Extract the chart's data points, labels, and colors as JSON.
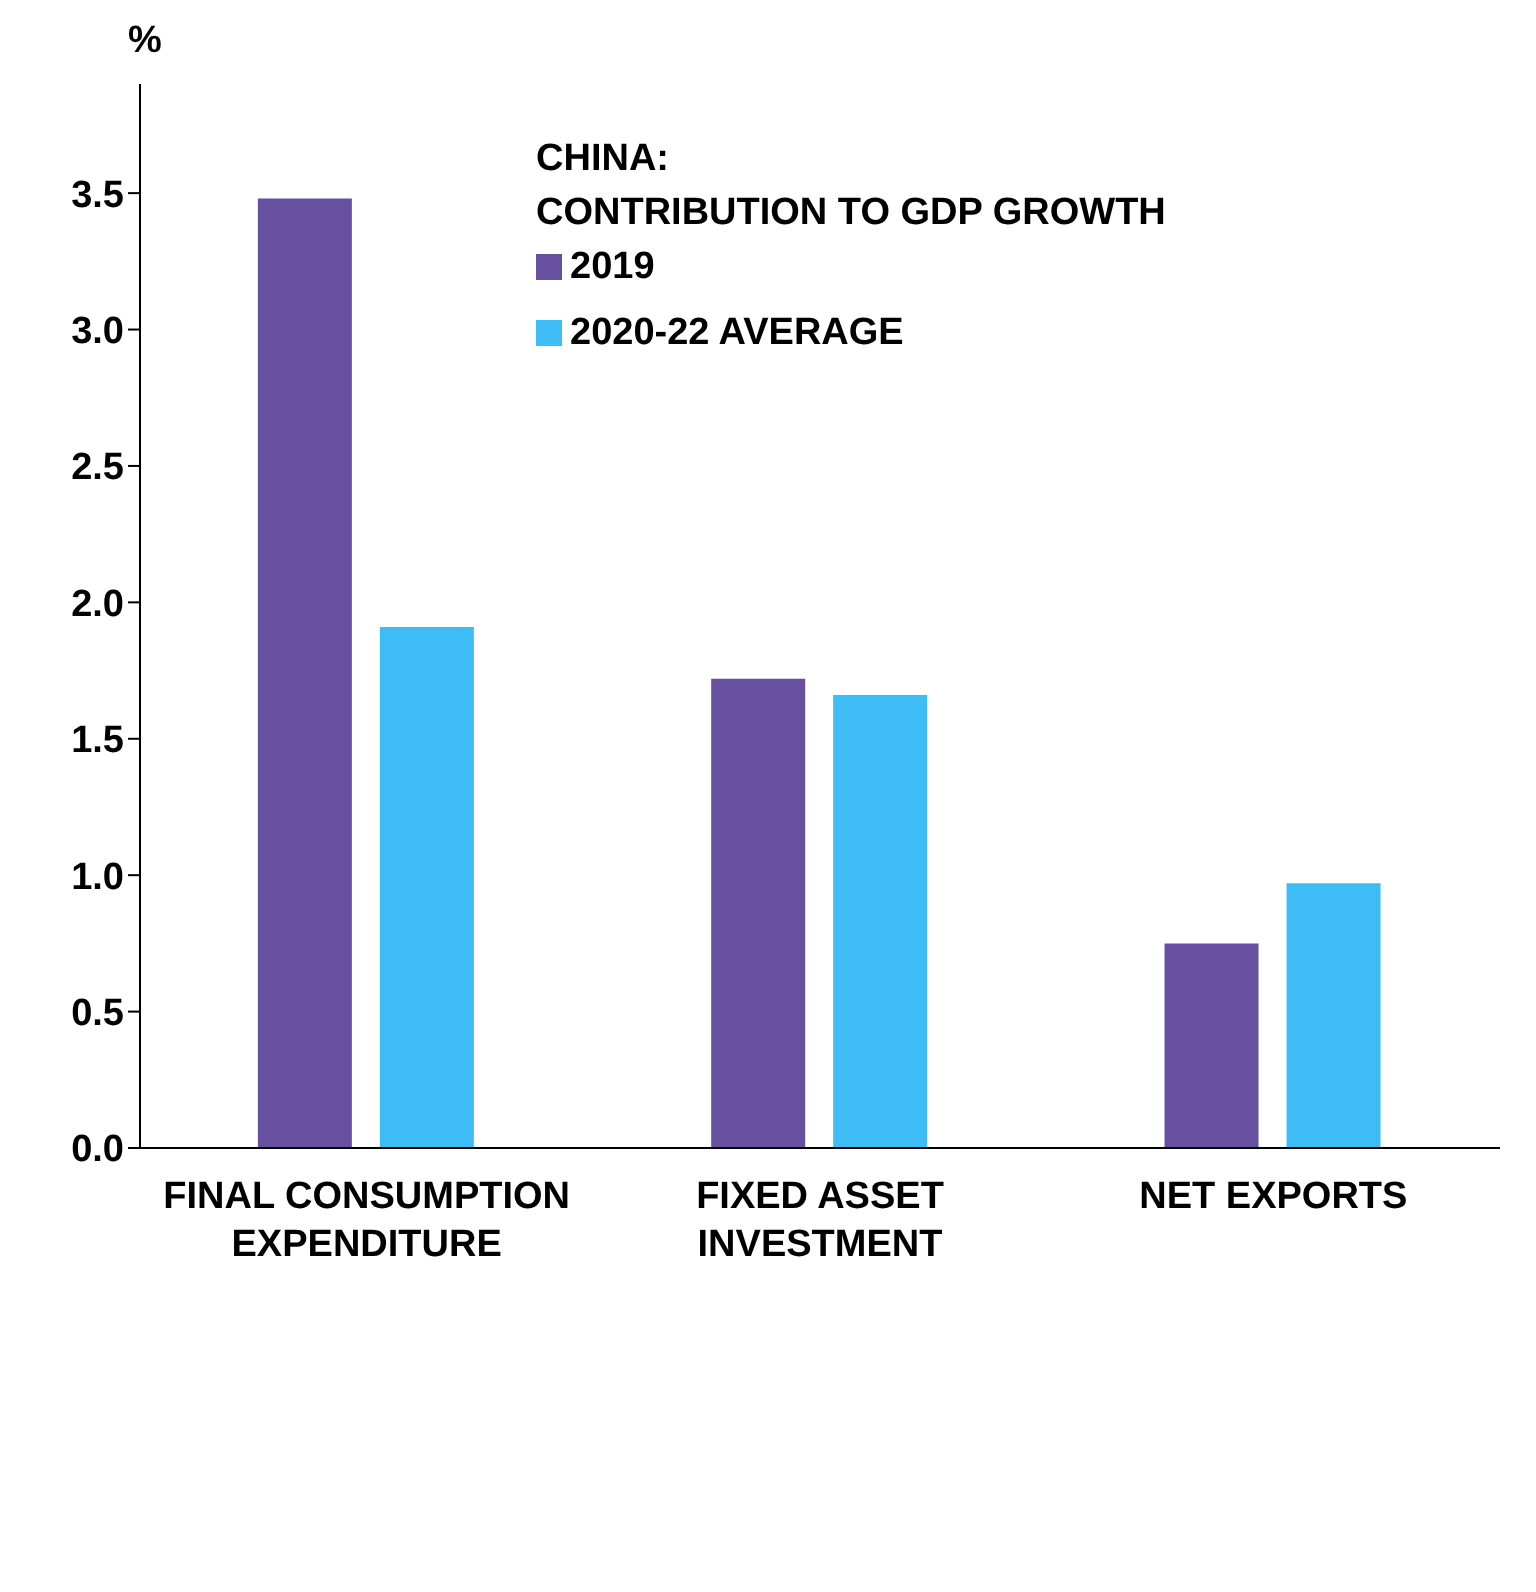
{
  "chart_data": {
    "type": "bar",
    "title": "CHINA:\nCONTRIBUTION TO GDP GROWTH",
    "ylabel": "%",
    "categories": [
      "FINAL CONSUMPTION EXPENDITURE",
      "FIXED ASSET INVESTMENT",
      "NET EXPORTS"
    ],
    "series": [
      {
        "name": "2019",
        "color": "#6750a0",
        "values": [
          3.48,
          1.72,
          0.75
        ]
      },
      {
        "name": "2020-22 AVERAGE",
        "color": "#3dbcf6",
        "values": [
          1.91,
          1.66,
          0.97
        ]
      }
    ],
    "ylim": [
      0,
      3.9
    ],
    "yticks": [
      {
        "value": 0,
        "label": "0.0"
      },
      {
        "value": 0.5,
        "label": "0.5"
      },
      {
        "value": 1,
        "label": "1.0"
      },
      {
        "value": 1.5,
        "label": "1.5"
      },
      {
        "value": 2,
        "label": "2.0"
      },
      {
        "value": 2.5,
        "label": "2.5"
      },
      {
        "value": 3,
        "label": "3.0"
      },
      {
        "value": 3.5,
        "label": "3.5"
      }
    ],
    "grid": false,
    "legend": "top"
  }
}
